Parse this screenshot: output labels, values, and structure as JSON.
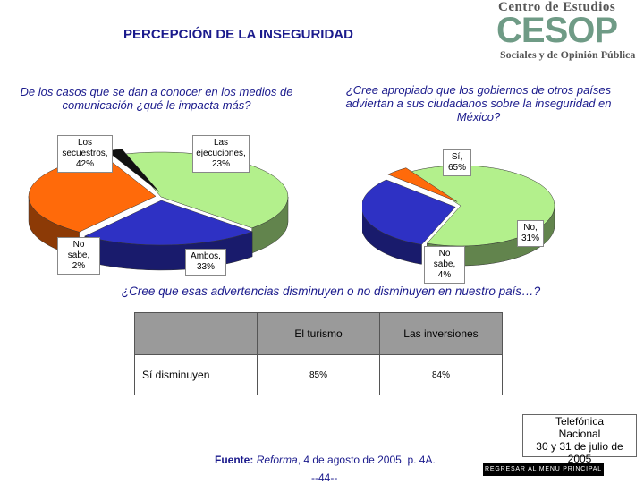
{
  "header": {
    "title": "PERCEPCIÓN DE LA INSEGURIDAD",
    "logo_top": "Centro de Estudios",
    "logo_mid": "CESOP",
    "logo_bottom": "Sociales y de Opinión Pública"
  },
  "questions": {
    "q1": "De los casos que se dan a conocer en los medios de comunicación ¿qué le impacta más?",
    "q2": "¿Cree apropiado que los gobiernos de otros países adviertan a sus ciudadanos sobre la inseguridad en México?",
    "q3": "¿Cree que esas advertencias disminuyen o no disminuyen en nuestro país…?"
  },
  "chart_data": [
    {
      "type": "pie",
      "slices": [
        {
          "label": "Los secuestros,",
          "value": 42,
          "value_label": "42%",
          "color": "#b3f08c"
        },
        {
          "label": "Las ejecuciones,",
          "value": 23,
          "value_label": "23%",
          "color": "#2e31c4"
        },
        {
          "label": "Ambos,",
          "value": 33,
          "value_label": "33%",
          "color": "#ff6a0a"
        },
        {
          "label": "No sabe,",
          "value": 2,
          "value_label": "2%",
          "color": "#111111"
        }
      ]
    },
    {
      "type": "pie",
      "slices": [
        {
          "label": "Sí,",
          "value": 65,
          "value_label": "65%",
          "color": "#b3f08c"
        },
        {
          "label": "No,",
          "value": 31,
          "value_label": "31%",
          "color": "#2e31c4"
        },
        {
          "label": "No sabe,",
          "value": 4,
          "value_label": "4%",
          "color": "#ff6a0a"
        }
      ]
    },
    {
      "type": "table",
      "columns": [
        "El turismo",
        "Las inversiones"
      ],
      "rows": [
        {
          "label": "Sí disminuyen",
          "values": [
            "85%",
            "84%"
          ]
        }
      ]
    }
  ],
  "footer": {
    "source_label": "Fuente:",
    "source_pub": "Reforma",
    "source_rest": ", 4 de agosto de 2005, p. 4A.",
    "page": "--44--",
    "survey": [
      "Telefónica",
      "Nacional",
      "30 y 31 de julio de 2005"
    ],
    "menu_button": "REGRESAR AL MENU PRINCIPAL"
  }
}
